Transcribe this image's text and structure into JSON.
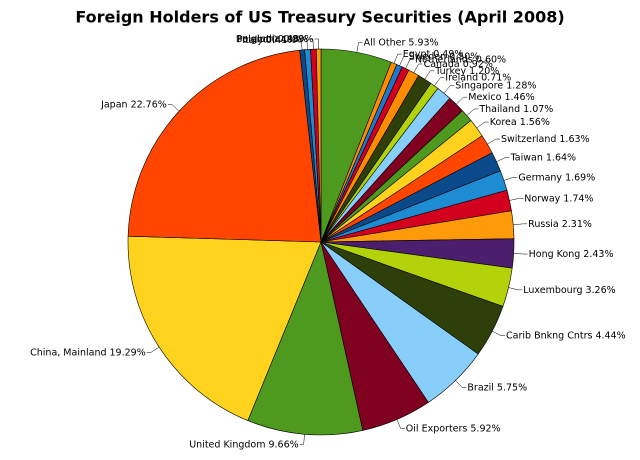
{
  "chart_data": {
    "type": "pie",
    "title": "Foreign Holders of US Treasury Securities (April 2008)",
    "categories": [
      "All Other",
      "Egypt",
      "Sweden",
      "Netherlands",
      "Canada",
      "Turkey",
      "Ireland",
      "Singapore",
      "Mexico",
      "Thailand",
      "Korea",
      "Switzerland",
      "Taiwan",
      "Germany",
      "Norway",
      "Russia",
      "Hong Kong",
      "Luxembourg",
      "Carib Bnkng  Cntrs",
      "Brazil",
      "Oil Exporters",
      "United Kingdom",
      "China, Mainland",
      "Japan",
      "Italy",
      "Poland",
      "Belgium",
      "India"
    ],
    "values": [
      5.93,
      0.49,
      0.5,
      0.6,
      0.92,
      1.2,
      0.71,
      1.28,
      1.46,
      1.07,
      1.56,
      1.63,
      1.64,
      1.69,
      1.74,
      2.31,
      2.43,
      3.26,
      4.44,
      5.75,
      5.92,
      9.66,
      19.29,
      22.76,
      0.41,
      0.48,
      0.48,
      0.39
    ],
    "value_labels": [
      "5.93%",
      "0.49%",
      "0.50%",
      "0.60%",
      "0.92%",
      "1.20%",
      "0.71%",
      "1.28%",
      "1.46%",
      "1.07%",
      "1.56%",
      "1.63%",
      "1.64%",
      "1.69%",
      "1.74%",
      "2.31%",
      "2.43%",
      "3.26%",
      "4.44%",
      "5.75%",
      "5.92%",
      "9.66%",
      "19.29%",
      "22.76%",
      "0.41%",
      "0.48%",
      "0.48%",
      "0.39%"
    ],
    "colors": [
      "#4e9a1e",
      "#ff8c00",
      "#1e78c8",
      "#d2001e",
      "#ff8c00",
      "#2f3f0a",
      "#b4d20a",
      "#87cefa",
      "#800020",
      "#4e9a1e",
      "#ffd21e",
      "#ff4500",
      "#0a4a8a",
      "#1e8cd2",
      "#d2001e",
      "#ff9a0a",
      "#4b1e6e",
      "#b4d20a",
      "#2f3f0a",
      "#87cefa",
      "#800020",
      "#4e9a1e",
      "#ffd21e",
      "#ff4500",
      "#0a4a8a",
      "#1e8cd2",
      "#d2001e",
      "#ff9a0a"
    ]
  }
}
